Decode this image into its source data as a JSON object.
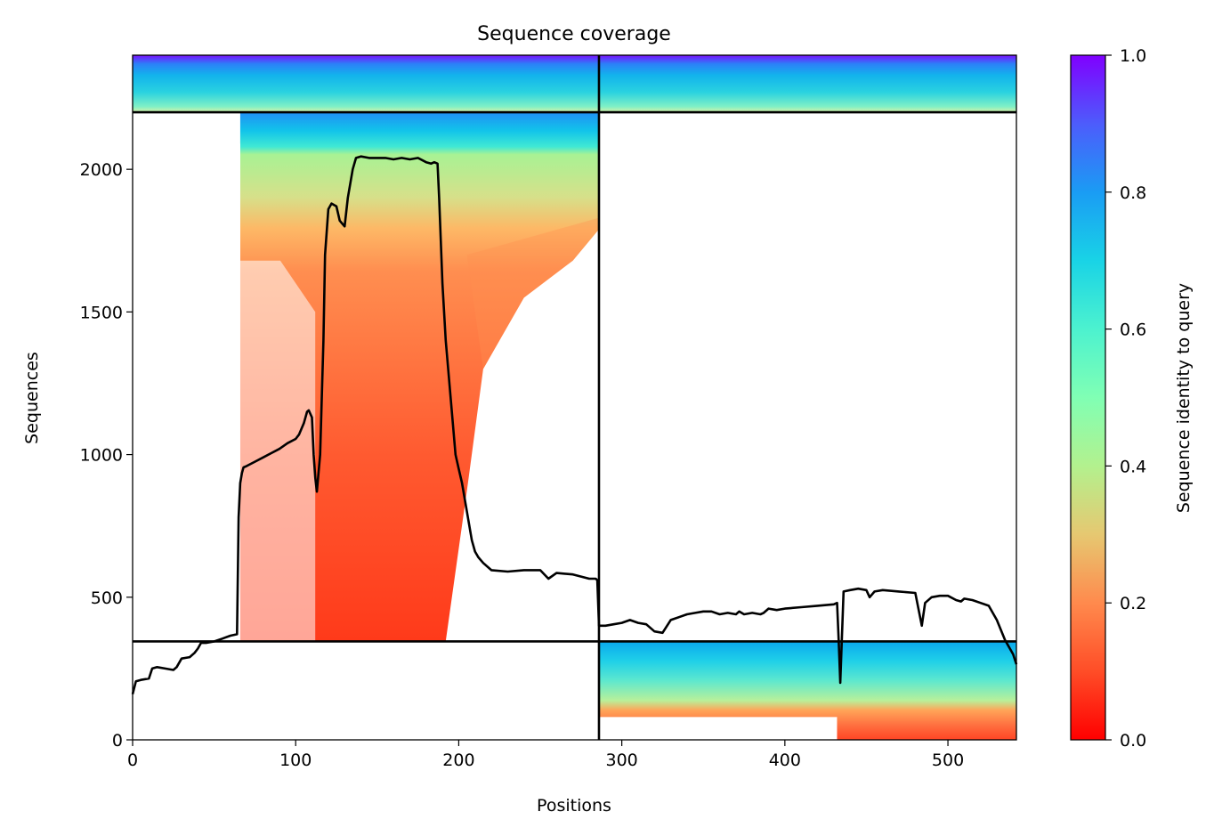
{
  "chart_data": {
    "type": "heatmap",
    "title": "Sequence coverage",
    "xlabel": "Positions",
    "ylabel": "Sequences",
    "xlim": [
      0,
      542
    ],
    "ylim": [
      0,
      2400
    ],
    "xticks": [
      0,
      100,
      200,
      300,
      400,
      500
    ],
    "yticks": [
      0,
      500,
      1000,
      1500,
      2000
    ],
    "colorbar": {
      "label": "Sequence identity to query",
      "range": [
        0.0,
        1.0
      ],
      "ticks": [
        "0.0",
        "0.2",
        "0.4",
        "0.6",
        "0.8",
        "1.0"
      ],
      "colormap": "rainbow (red → orange → yellow-green → cyan → blue → violet)"
    },
    "block_divider_position": 286,
    "block_divider_sequences": [
      345,
      2200
    ],
    "regions": [
      {
        "name": "upper-left block",
        "x": [
          0,
          286
        ],
        "y": [
          2200,
          2400
        ],
        "identity": [
          0.65,
          1.0
        ]
      },
      {
        "name": "upper-right block",
        "x": [
          286,
          542
        ],
        "y": [
          2200,
          2400
        ],
        "identity": [
          0.55,
          1.0
        ]
      },
      {
        "name": "middle-left block",
        "x": [
          66,
          286
        ],
        "y": [
          345,
          2200
        ],
        "identity": [
          0.1,
          0.8
        ]
      },
      {
        "name": "lower-right block",
        "x": [
          286,
          542
        ],
        "y": [
          0,
          345
        ],
        "identity": [
          0.1,
          0.8
        ]
      }
    ],
    "coverage": {
      "x": [
        0,
        2,
        5,
        10,
        12,
        15,
        20,
        25,
        27,
        30,
        35,
        38,
        40,
        42,
        45,
        50,
        55,
        60,
        64,
        65,
        66,
        67,
        68,
        70,
        75,
        80,
        85,
        90,
        95,
        100,
        102,
        105,
        107,
        108,
        110,
        111,
        112,
        113,
        115,
        117,
        118,
        120,
        122,
        125,
        127,
        130,
        132,
        135,
        137,
        140,
        145,
        150,
        155,
        160,
        165,
        170,
        175,
        180,
        183,
        185,
        187,
        188,
        190,
        192,
        195,
        198,
        200,
        202,
        205,
        208,
        210,
        212,
        215,
        220,
        230,
        240,
        250,
        255,
        260,
        270,
        280,
        284,
        285,
        286,
        290,
        295,
        300,
        305,
        310,
        315,
        320,
        325,
        330,
        335,
        340,
        345,
        350,
        355,
        360,
        365,
        370,
        372,
        375,
        380,
        385,
        387,
        390,
        395,
        400,
        410,
        420,
        430,
        432,
        433,
        434,
        436,
        440,
        445,
        450,
        452,
        455,
        460,
        470,
        480,
        484,
        486,
        490,
        495,
        500,
        505,
        508,
        510,
        515,
        520,
        525,
        530,
        535,
        540,
        542
      ],
      "values": [
        160,
        205,
        210,
        215,
        250,
        255,
        250,
        245,
        255,
        285,
        290,
        305,
        320,
        340,
        340,
        345,
        355,
        365,
        370,
        780,
        900,
        935,
        955,
        960,
        975,
        990,
        1005,
        1020,
        1040,
        1055,
        1070,
        1110,
        1150,
        1155,
        1130,
        1000,
        920,
        870,
        1000,
        1400,
        1700,
        1860,
        1880,
        1870,
        1820,
        1800,
        1900,
        2000,
        2040,
        2045,
        2040,
        2040,
        2040,
        2035,
        2040,
        2035,
        2040,
        2025,
        2020,
        2025,
        2020,
        1900,
        1600,
        1400,
        1200,
        1000,
        950,
        900,
        800,
        700,
        660,
        640,
        620,
        595,
        590,
        595,
        595,
        565,
        585,
        580,
        565,
        565,
        560,
        400,
        400,
        405,
        410,
        420,
        410,
        405,
        380,
        375,
        420,
        430,
        440,
        445,
        450,
        450,
        440,
        445,
        440,
        450,
        440,
        445,
        440,
        445,
        460,
        455,
        460,
        465,
        470,
        475,
        480,
        350,
        200,
        520,
        525,
        530,
        525,
        500,
        520,
        525,
        520,
        515,
        400,
        480,
        500,
        505,
        505,
        490,
        485,
        495,
        490,
        480,
        470,
        420,
        350,
        300,
        265
      ]
    }
  }
}
